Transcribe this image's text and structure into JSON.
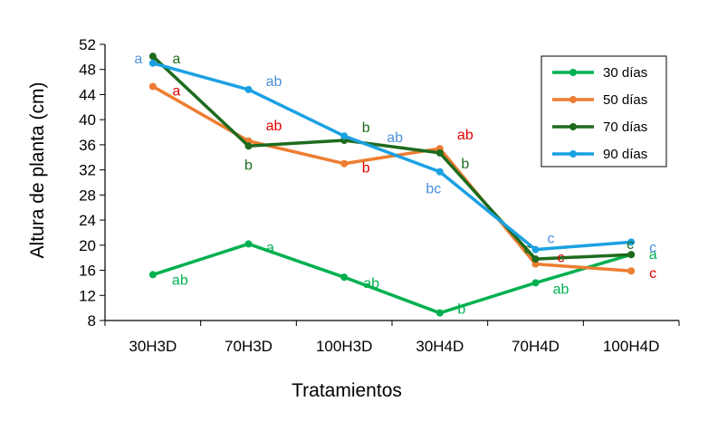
{
  "chart_data": {
    "type": "line",
    "title": "",
    "xlabel": "Tratamientos",
    "ylabel": "Altura de planta (cm)",
    "categories": [
      "30H3D",
      "70H3D",
      "100H3D",
      "30H4D",
      "70H4D",
      "100H4D"
    ],
    "ylim": [
      8,
      52
    ],
    "yticks": [
      8,
      12,
      16,
      20,
      24,
      28,
      32,
      36,
      40,
      44,
      48,
      52
    ],
    "grid": false,
    "legend_position": "top-right",
    "series": [
      {
        "name": "30 días",
        "color": "#00b050",
        "values": [
          15.3,
          20.2,
          14.9,
          9.2,
          14.0,
          18.5
        ],
        "labels": [
          "ab",
          "a",
          "ab",
          "b",
          "ab",
          "a"
        ]
      },
      {
        "name": "50 días",
        "color": "#ed7d31",
        "values": [
          45.3,
          36.6,
          33.0,
          35.4,
          17.0,
          15.9
        ],
        "labels": [
          "a",
          "ab",
          "b",
          "ab",
          "c",
          "c"
        ]
      },
      {
        "name": "70 días",
        "color": "#1e6b1e",
        "values": [
          50.1,
          35.8,
          36.7,
          34.7,
          17.8,
          18.5
        ],
        "labels": [
          "a",
          "b",
          "b",
          "b",
          "c",
          "c"
        ]
      },
      {
        "name": "90 días",
        "color": "#1ba1e2",
        "values": [
          49.0,
          44.8,
          37.4,
          31.7,
          19.3,
          20.5
        ],
        "labels": [
          "a",
          "ab",
          "ab",
          "bc",
          "c",
          "c"
        ]
      }
    ]
  }
}
